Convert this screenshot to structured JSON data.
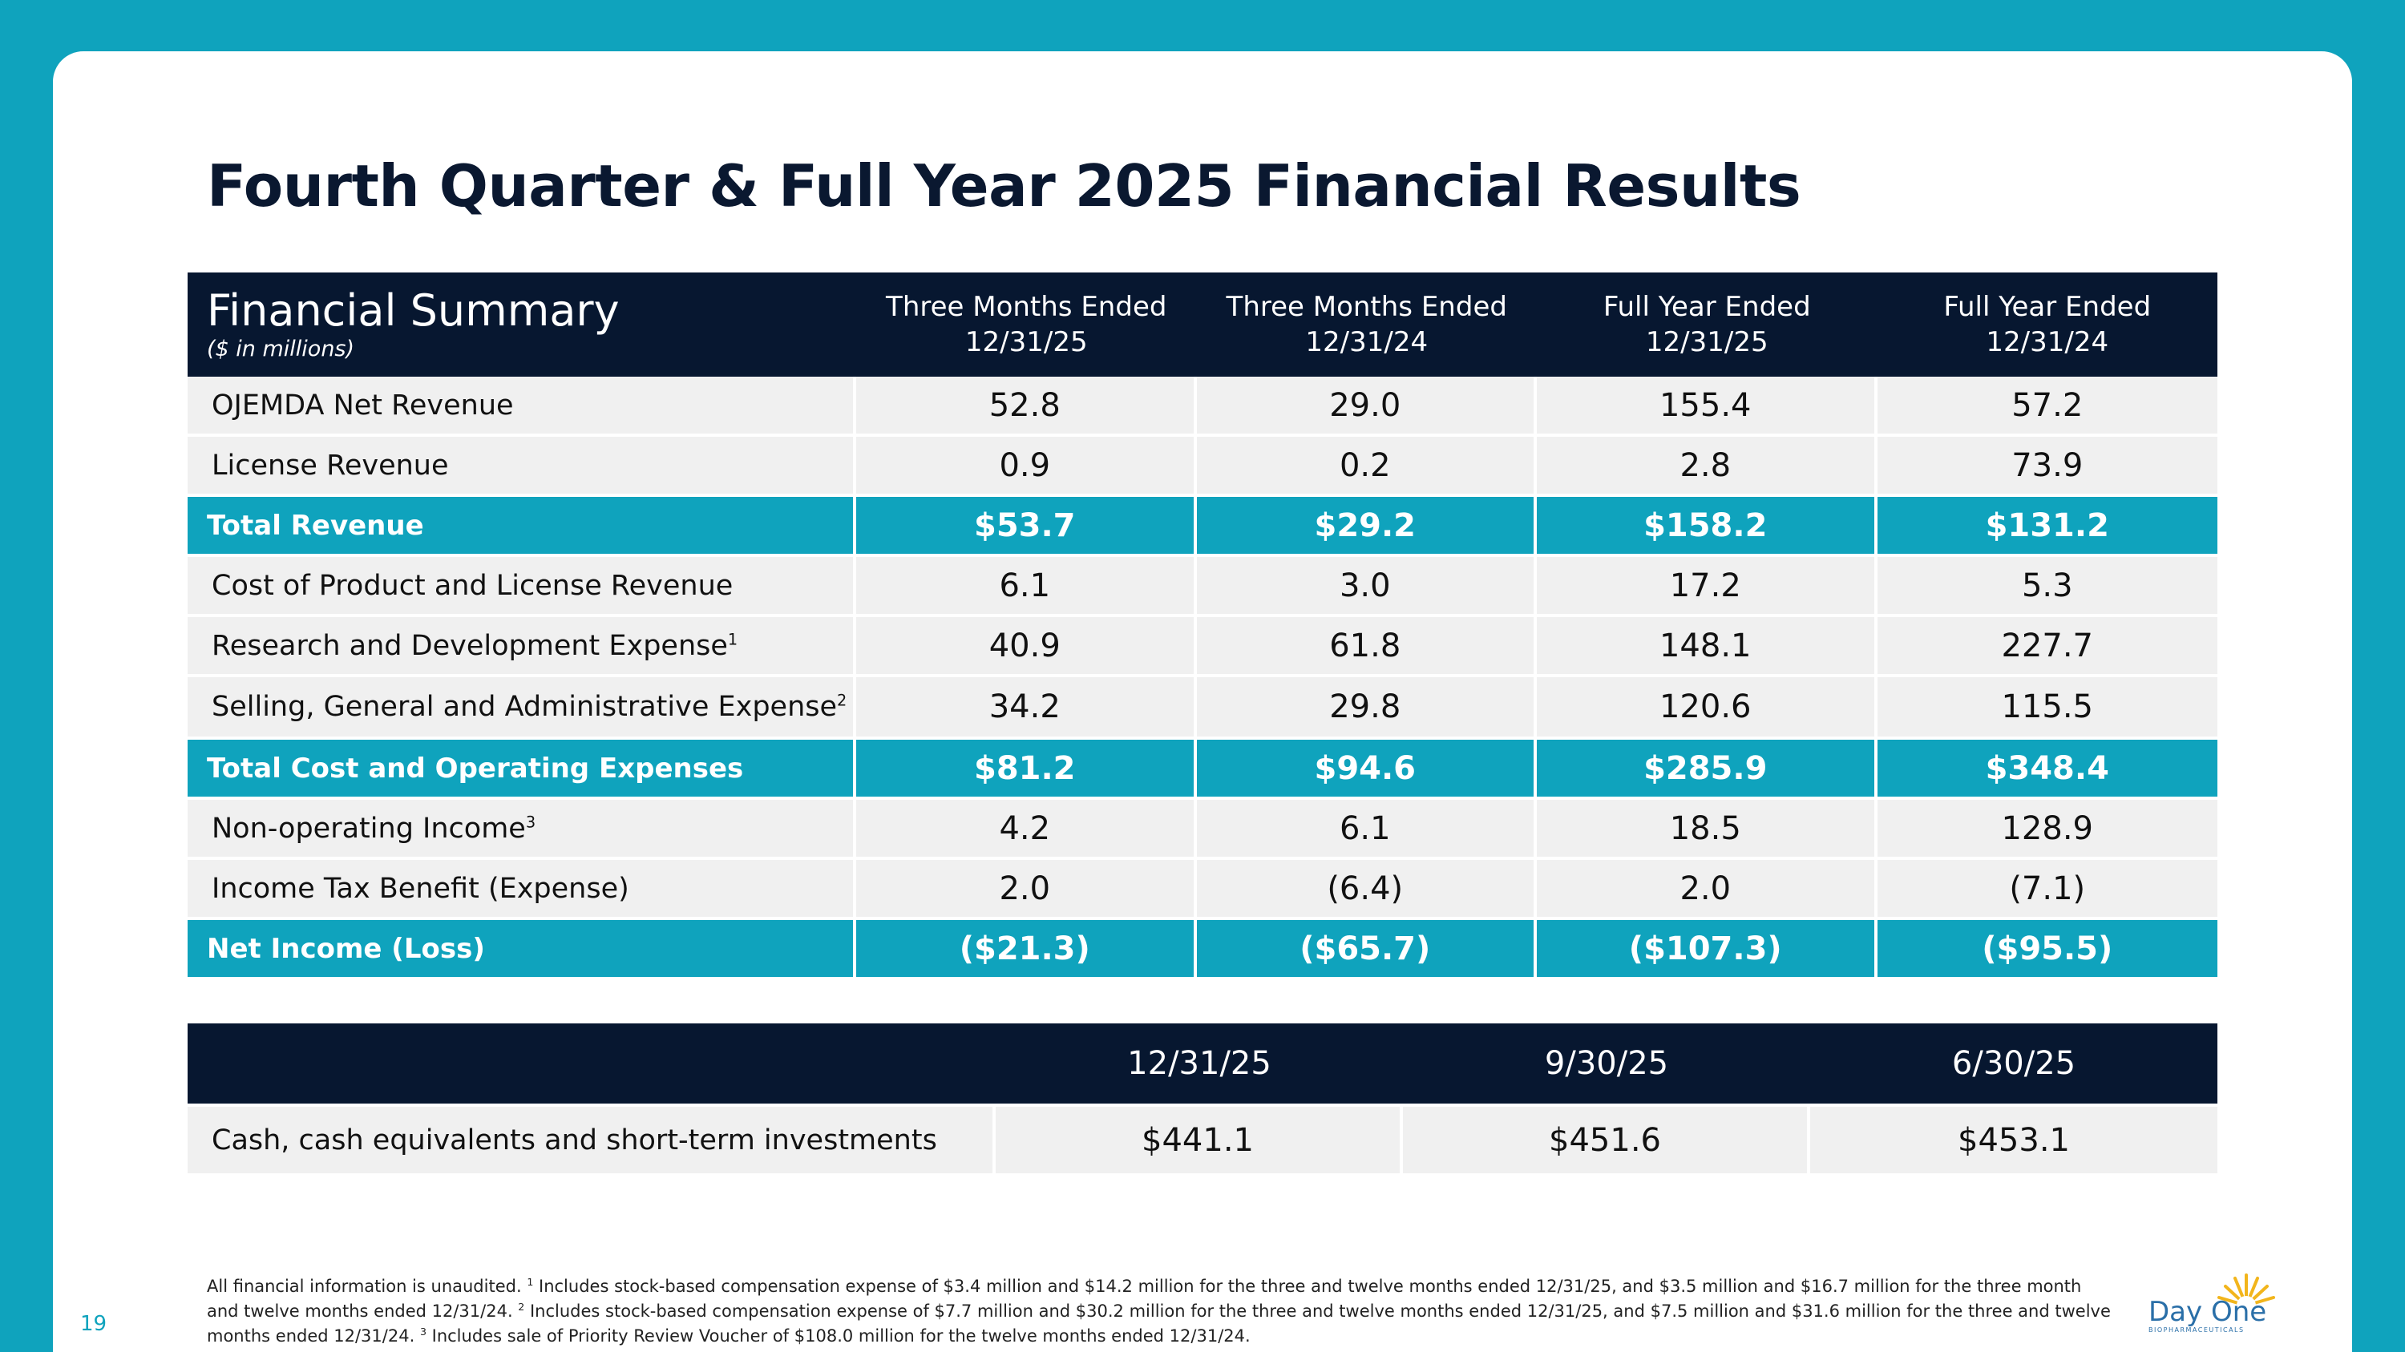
{
  "title": "Fourth Quarter & Full Year 2025 Financial Results",
  "page_number": "19",
  "logo": {
    "name": "Day One",
    "tagline": "BIOPHARMACEUTICALS"
  },
  "colors": {
    "teal": "#0fa3bd",
    "navy": "#071730",
    "row_bg": "#f0f0f0"
  },
  "financial_table": {
    "header_title": "Financial Summary",
    "header_subtitle": "($ in millions)",
    "columns": [
      {
        "line1": "Three Months Ended",
        "line2": "12/31/25"
      },
      {
        "line1": "Three Months Ended",
        "line2": "12/31/24"
      },
      {
        "line1": "Full Year Ended",
        "line2": "12/31/25"
      },
      {
        "line1": "Full Year Ended",
        "line2": "12/31/24"
      }
    ],
    "rows": [
      {
        "label": "OJEMDA Net Revenue",
        "sup": "",
        "total": false,
        "values": [
          "52.8",
          "29.0",
          "155.4",
          "57.2"
        ]
      },
      {
        "label": "License Revenue",
        "sup": "",
        "total": false,
        "values": [
          "0.9",
          "0.2",
          "2.8",
          "73.9"
        ]
      },
      {
        "label": "Total Revenue",
        "sup": "",
        "total": true,
        "values": [
          "$53.7",
          "$29.2",
          "$158.2",
          "$131.2"
        ]
      },
      {
        "label": "Cost of Product and License Revenue",
        "sup": "",
        "total": false,
        "values": [
          "6.1",
          "3.0",
          "17.2",
          "5.3"
        ]
      },
      {
        "label": "Research and Development Expense",
        "sup": "1",
        "total": false,
        "values": [
          "40.9",
          "61.8",
          "148.1",
          "227.7"
        ]
      },
      {
        "label": "Selling, General and Administrative Expense",
        "sup": "2",
        "total": false,
        "values": [
          "34.2",
          "29.8",
          "120.6",
          "115.5"
        ]
      },
      {
        "label": "Total Cost and Operating Expenses",
        "sup": "",
        "total": true,
        "values": [
          "$81.2",
          "$94.6",
          "$285.9",
          "$348.4"
        ]
      },
      {
        "label": "Non-operating Income",
        "sup": "3",
        "total": false,
        "values": [
          "4.2",
          "6.1",
          "18.5",
          "128.9"
        ]
      },
      {
        "label": "Income Tax Benefit (Expense)",
        "sup": "",
        "total": false,
        "values": [
          "2.0",
          "(6.4)",
          "2.0",
          "(7.1)"
        ]
      },
      {
        "label": "Net Income (Loss)",
        "sup": "",
        "total": true,
        "values": [
          "($21.3)",
          "($65.7)",
          "($107.3)",
          "($95.5)"
        ]
      }
    ]
  },
  "cash_table": {
    "columns": [
      "12/31/25",
      "9/30/25",
      "6/30/25"
    ],
    "row_label": "Cash, cash equivalents and short-term investments",
    "values": [
      "$441.1",
      "$451.6",
      "$453.1"
    ]
  },
  "footnote": {
    "intro": "All financial information is unaudited. ",
    "notes": [
      {
        "sup": "1",
        "text": " Includes stock-based compensation expense of $3.4 million and $14.2 million for the three and twelve months ended 12/31/25, and $3.5 million and $16.7 million for the three month and twelve months ended 12/31/24. "
      },
      {
        "sup": "2",
        "text": " Includes stock-based compensation expense of $7.7 million and $30.2 million for the three and twelve months ended 12/31/25, and $7.5 million and $31.6 million for the three and twelve months ended 12/31/24. "
      },
      {
        "sup": "3",
        "text": " Includes sale of Priority Review Voucher of $108.0 million for the twelve months ended 12/31/24."
      }
    ]
  }
}
